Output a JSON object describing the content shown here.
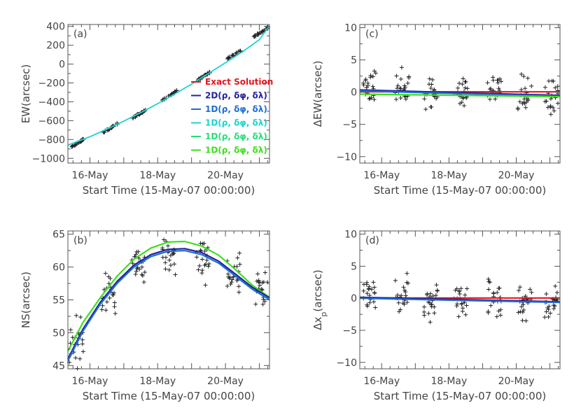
{
  "chart_data": [
    {
      "type": "scatter",
      "panel": "(a)",
      "xlabel": "Start Time (15-May-07 00:00:00)",
      "ylabel": "EW(arcsec)",
      "xticks": [
        {
          "x": 1,
          "label": "16-May"
        },
        {
          "x": 3,
          "label": "18-May"
        },
        {
          "x": 5,
          "label": "20-May"
        }
      ],
      "xlim": [
        0.35,
        6.3
      ],
      "ylim": [
        -1050,
        420
      ],
      "yticks": [
        400,
        200,
        0,
        -200,
        -400,
        -600,
        -800,
        -1000
      ],
      "ytick_labels": [
        "400",
        "200",
        "0",
        "−200",
        "−400",
        "−600",
        "−800",
        "−1000"
      ],
      "legend_position": "bottom-right",
      "legend": [
        {
          "label": "Exact Solution",
          "color": "#e8141b"
        },
        {
          "label": "2D(ρ, δφ, δλ)",
          "color": "#23239b"
        },
        {
          "label": "1D(ρ, δφ, δλ)",
          "color": "#1e6ed2"
        },
        {
          "label": "1D(ρ, δφ, δλ)",
          "color": "#1ed2d2"
        },
        {
          "label": "1D(ρ, δφ, δλ)",
          "color": "#22e07a"
        },
        {
          "label": "1D(ρ, δφ, δλ)",
          "color": "#3ce01e"
        }
      ],
      "series": [
        {
          "color": "#1ed2d2",
          "x": [
            0.35,
            1.0,
            1.5,
            2.0,
            2.5,
            3.0,
            3.5,
            4.0,
            4.5,
            5.0,
            5.5,
            6.0,
            6.3
          ],
          "values": [
            -860,
            -770,
            -690,
            -605,
            -515,
            -420,
            -318,
            -212,
            -100,
            15,
            130,
            260,
            405
          ]
        }
      ],
      "point_clusters": [
        {
          "x_center": 0.65,
          "y_center": -835
        },
        {
          "x_center": 1.6,
          "y_center": -680
        },
        {
          "x_center": 2.45,
          "y_center": -530
        },
        {
          "x_center": 3.35,
          "y_center": -335
        },
        {
          "x_center": 4.35,
          "y_center": -130
        },
        {
          "x_center": 5.25,
          "y_center": 100
        },
        {
          "x_center": 6.05,
          "y_center": 340
        }
      ]
    },
    {
      "type": "scatter",
      "panel": "(c)",
      "xlabel": "Start Time (15-May-07 00:00:00)",
      "ylabel": "ΔEW(arcsec)",
      "xticks": [
        {
          "x": 1,
          "label": "16-May"
        },
        {
          "x": 3,
          "label": "18-May"
        },
        {
          "x": 5,
          "label": "20-May"
        }
      ],
      "xlim": [
        0.35,
        6.3
      ],
      "ylim": [
        -11,
        10.5
      ],
      "yticks": [
        10,
        5,
        0,
        -5,
        -10
      ],
      "ytick_labels": [
        "10",
        "5",
        "0",
        "−5",
        "−10"
      ],
      "series": [
        {
          "color": "#e8141b",
          "x": [
            0.35,
            6.3
          ],
          "values": [
            0.05,
            0.05
          ]
        },
        {
          "color": "#23239b",
          "x": [
            0.35,
            6.3
          ],
          "values": [
            0.35,
            -0.5
          ]
        },
        {
          "color": "#1e6ed2",
          "x": [
            0.35,
            6.3
          ],
          "values": [
            0.2,
            -0.65
          ]
        },
        {
          "color": "#3ce01e",
          "x": [
            0.35,
            6.3
          ],
          "values": [
            -0.3,
            -0.7
          ]
        }
      ],
      "point_clusters": [
        {
          "x_center": 0.65,
          "y_center": 0.5
        },
        {
          "x_center": 1.6,
          "y_center": 0.5
        },
        {
          "x_center": 2.45,
          "y_center": -0.3
        },
        {
          "x_center": 3.35,
          "y_center": 0.2
        },
        {
          "x_center": 4.35,
          "y_center": 0.3
        },
        {
          "x_center": 5.25,
          "y_center": -0.5
        },
        {
          "x_center": 6.05,
          "y_center": -0.8
        }
      ]
    },
    {
      "type": "scatter",
      "panel": "(b)",
      "xlabel": "Start Time (15-May-07 00:00:00)",
      "ylabel": "NS(arcsec)",
      "xticks": [
        {
          "x": 1,
          "label": "16-May"
        },
        {
          "x": 3,
          "label": "18-May"
        },
        {
          "x": 5,
          "label": "20-May"
        }
      ],
      "xlim": [
        0.35,
        6.3
      ],
      "ylim": [
        44.5,
        65.5
      ],
      "yticks": [
        65,
        60,
        55,
        50,
        45
      ],
      "ytick_labels": [
        "65",
        "60",
        "55",
        "50",
        "45"
      ],
      "series": [
        {
          "color": "#3ce01e",
          "x": [
            0.35,
            0.8,
            1.3,
            1.8,
            2.3,
            2.8,
            3.3,
            3.8,
            4.3,
            4.8,
            5.3,
            5.8,
            6.3
          ],
          "values": [
            47.2,
            51.6,
            55.3,
            58.6,
            61.2,
            62.9,
            63.8,
            63.9,
            63.2,
            61.8,
            59.6,
            57.2,
            55.4
          ]
        },
        {
          "color": "#23239b",
          "x": [
            0.35,
            0.8,
            1.3,
            1.8,
            2.3,
            2.8,
            3.3,
            3.8,
            4.3,
            4.8,
            5.3,
            5.8,
            6.3
          ],
          "values": [
            46.0,
            50.6,
            54.6,
            57.8,
            60.3,
            61.9,
            62.7,
            62.8,
            62.2,
            60.9,
            58.9,
            56.9,
            55.3
          ]
        },
        {
          "color": "#1e6ed2",
          "x": [
            0.35,
            0.8,
            1.3,
            1.8,
            2.3,
            2.8,
            3.3,
            3.8,
            4.3,
            4.8,
            5.3,
            5.8,
            6.3
          ],
          "values": [
            45.7,
            50.3,
            54.3,
            57.5,
            60.0,
            61.6,
            62.4,
            62.5,
            61.9,
            60.6,
            58.6,
            56.6,
            55.0
          ]
        }
      ],
      "point_clusters": [
        {
          "x_center": 0.6,
          "y_center": 48.5
        },
        {
          "x_center": 1.55,
          "y_center": 56.0
        },
        {
          "x_center": 2.45,
          "y_center": 60.5
        },
        {
          "x_center": 3.35,
          "y_center": 61.5
        },
        {
          "x_center": 4.35,
          "y_center": 61.0
        },
        {
          "x_center": 5.25,
          "y_center": 59.0
        },
        {
          "x_center": 6.05,
          "y_center": 57.0
        }
      ]
    },
    {
      "type": "scatter",
      "panel": "(d)",
      "xlabel": "Start Time (15-May-07 00:00:00)",
      "ylabel": "Δx_p(arcsec)",
      "ylabel_main": "Δx",
      "ylabel_sub": "p",
      "ylabel_unit": "(arcsec)",
      "xticks": [
        {
          "x": 1,
          "label": "16-May"
        },
        {
          "x": 3,
          "label": "18-May"
        },
        {
          "x": 5,
          "label": "20-May"
        }
      ],
      "xlim": [
        0.35,
        6.3
      ],
      "ylim": [
        -11,
        10.5
      ],
      "yticks": [
        10,
        5,
        0,
        -5,
        -10
      ],
      "ytick_labels": [
        "10",
        "5",
        "0",
        "−5",
        "−10"
      ],
      "series": [
        {
          "color": "#e8141b",
          "x": [
            0.35,
            6.3
          ],
          "values": [
            0.05,
            0.05
          ]
        },
        {
          "color": "#23239b",
          "x": [
            0.35,
            6.3
          ],
          "values": [
            0.15,
            -0.55
          ]
        },
        {
          "color": "#1e6ed2",
          "x": [
            0.35,
            6.3
          ],
          "values": [
            0.0,
            -0.65
          ]
        }
      ],
      "point_clusters": [
        {
          "x_center": 0.65,
          "y_center": 0.3
        },
        {
          "x_center": 1.6,
          "y_center": 0.3
        },
        {
          "x_center": 2.45,
          "y_center": -0.5
        },
        {
          "x_center": 3.35,
          "y_center": -0.2
        },
        {
          "x_center": 4.35,
          "y_center": 0.0
        },
        {
          "x_center": 5.25,
          "y_center": -0.6
        },
        {
          "x_center": 6.05,
          "y_center": -0.7
        }
      ]
    }
  ]
}
